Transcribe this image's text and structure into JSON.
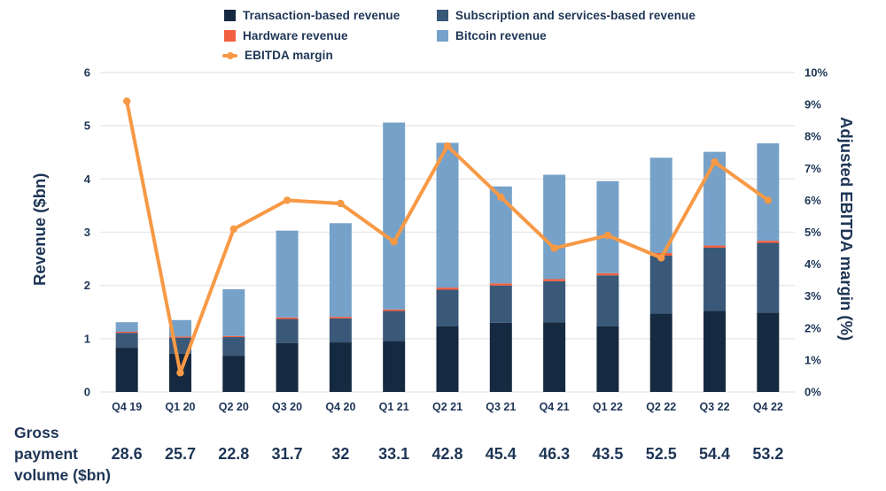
{
  "colors": {
    "text": "#1e3556",
    "grid": "#e9e9e9",
    "transaction": "#152940",
    "subscription": "#3a5878",
    "hardware": "#f15f40",
    "bitcoin": "#76a1c8",
    "line": "#f79945"
  },
  "legend": {
    "transaction": "Transaction-based revenue",
    "subscription": "Subscription and services-based revenue",
    "hardware": "Hardware revenue",
    "bitcoin": "Bitcoin revenue",
    "ebitda": "EBITDA margin"
  },
  "chart_data": {
    "type": "bar",
    "subtype": "stacked-bars-with-line-overlay",
    "title": "",
    "categories": [
      "Q4 19",
      "Q1 20",
      "Q2 20",
      "Q3 20",
      "Q4 20",
      "Q1 21",
      "Q2 21",
      "Q3 21",
      "Q4 21",
      "Q1 22",
      "Q2 22",
      "Q3 22",
      "Q4 22"
    ],
    "series": [
      {
        "name": "Transaction-based revenue",
        "type": "bar",
        "axis": "left",
        "color_key": "transaction",
        "values": [
          0.83,
          0.72,
          0.68,
          0.92,
          0.93,
          0.96,
          1.23,
          1.3,
          1.31,
          1.23,
          1.47,
          1.52,
          1.49
        ]
      },
      {
        "name": "Subscription and services-based revenue",
        "type": "bar",
        "axis": "left",
        "color_key": "subscription",
        "values": [
          0.28,
          0.3,
          0.35,
          0.45,
          0.45,
          0.56,
          0.69,
          0.7,
          0.77,
          0.96,
          1.09,
          1.19,
          1.31
        ]
      },
      {
        "name": "Hardware revenue",
        "type": "bar",
        "axis": "left",
        "color_key": "hardware",
        "values": [
          0.02,
          0.02,
          0.02,
          0.03,
          0.03,
          0.03,
          0.04,
          0.04,
          0.04,
          0.04,
          0.05,
          0.04,
          0.04
        ]
      },
      {
        "name": "Bitcoin revenue",
        "type": "bar",
        "axis": "left",
        "color_key": "bitcoin",
        "values": [
          0.18,
          0.31,
          0.88,
          1.63,
          1.76,
          3.51,
          2.72,
          1.82,
          1.96,
          1.73,
          1.79,
          1.76,
          1.83
        ]
      },
      {
        "name": "EBITDA margin",
        "type": "line",
        "axis": "right",
        "color_key": "line",
        "values": [
          9.1,
          0.6,
          5.1,
          6.0,
          5.9,
          4.7,
          7.7,
          6.1,
          4.5,
          4.9,
          4.2,
          7.2,
          6.0
        ]
      }
    ],
    "ylabel_left": "Revenue ($bn)",
    "ylabel_right": "Adjusted EBITDA margin (%)",
    "left_axis": {
      "min": 0,
      "max": 6,
      "ticks": [
        0,
        1,
        2,
        3,
        4,
        5,
        6
      ]
    },
    "right_axis": {
      "min": 0,
      "max": 10,
      "ticks": [
        "0%",
        "1%",
        "2%",
        "3%",
        "4%",
        "5%",
        "6%",
        "7%",
        "8%",
        "9%",
        "10%"
      ]
    },
    "grid": "horizontal",
    "legend_position": "top",
    "gpv": {
      "label": "Gross payment volume ($bn)",
      "values": [
        "28.6",
        "25.7",
        "22.8",
        "31.7",
        "32",
        "33.1",
        "42.8",
        "45.4",
        "46.3",
        "43.5",
        "52.5",
        "54.4",
        "53.2"
      ]
    }
  }
}
